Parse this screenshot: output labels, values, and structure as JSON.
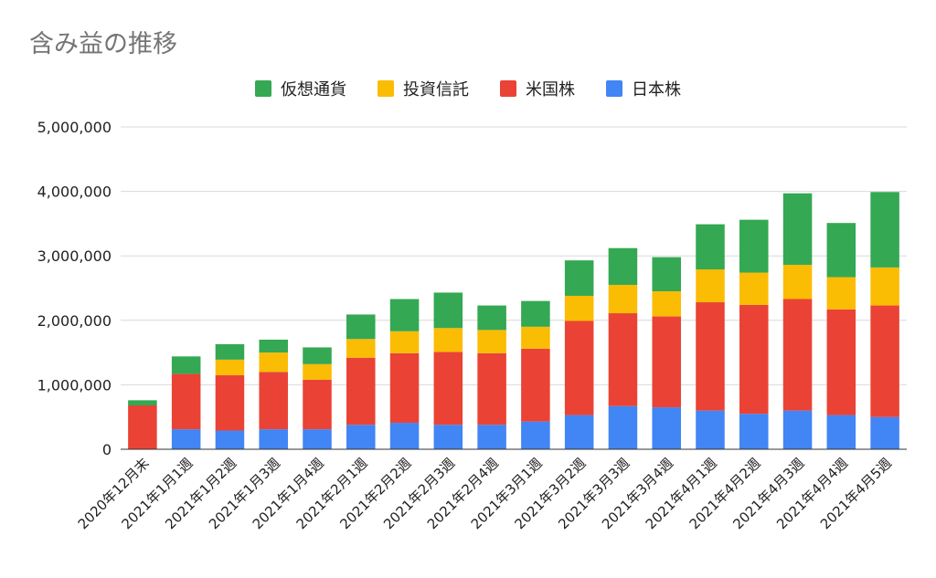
{
  "chart_data": {
    "type": "bar",
    "stacked": true,
    "title": "含み益の推移",
    "xlabel": "",
    "ylabel": "",
    "ylim": [
      0,
      5000000
    ],
    "yticks": [
      "0",
      "1,000,000",
      "2,000,000",
      "3,000,000",
      "4,000,000",
      "5,000,000"
    ],
    "grid": true,
    "legend_position": "top",
    "categories": [
      "2020年12月末",
      "2021年1月1週",
      "2021年1月2週",
      "2021年1月3週",
      "2021年1月4週",
      "2021年2月1週",
      "2021年2月2週",
      "2021年2月3週",
      "2021年2月4週",
      "2021年3月1週",
      "2021年3月2週",
      "2021年3月3週",
      "2021年3月4週",
      "2021年4月1週",
      "2021年4月2週",
      "2021年4月3週",
      "2021年4月4週",
      "2021年4月5週"
    ],
    "series": [
      {
        "name": "日本株",
        "color": "#4285f4",
        "values": [
          0,
          310000,
          290000,
          310000,
          310000,
          380000,
          410000,
          380000,
          380000,
          430000,
          530000,
          670000,
          650000,
          600000,
          550000,
          600000,
          530000,
          500000
        ]
      },
      {
        "name": "米国株",
        "color": "#ea4335",
        "values": [
          680000,
          860000,
          860000,
          890000,
          770000,
          1040000,
          1080000,
          1130000,
          1110000,
          1130000,
          1460000,
          1440000,
          1410000,
          1680000,
          1690000,
          1730000,
          1640000,
          1730000
        ]
      },
      {
        "name": "投資信託",
        "color": "#fbbc04",
        "values": [
          0,
          0,
          240000,
          300000,
          240000,
          290000,
          340000,
          370000,
          360000,
          340000,
          390000,
          440000,
          390000,
          510000,
          500000,
          530000,
          500000,
          590000
        ]
      },
      {
        "name": "仮想通貨",
        "color": "#34a853",
        "values": [
          80000,
          270000,
          240000,
          200000,
          260000,
          380000,
          500000,
          550000,
          380000,
          400000,
          550000,
          570000,
          530000,
          700000,
          820000,
          1110000,
          840000,
          1170000
        ]
      }
    ]
  }
}
